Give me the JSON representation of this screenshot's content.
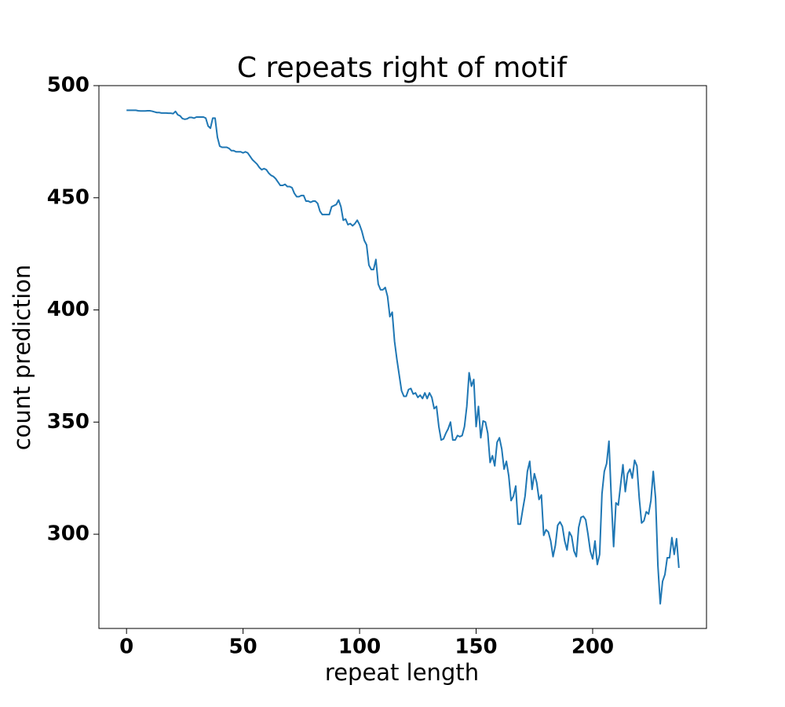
{
  "chart_data": {
    "type": "line",
    "title": "C repeats right of motif",
    "x_label": "repeat length",
    "y_label": "count prediction",
    "xlim": [
      -11.85,
      248.85
    ],
    "ylim": [
      258,
      500
    ],
    "xticks": [
      0,
      50,
      100,
      150,
      200
    ],
    "yticks": [
      300,
      350,
      400,
      450,
      500
    ],
    "grid": false,
    "series": [
      {
        "color": "#1f77b4",
        "x": [
          0,
          1,
          2,
          3,
          4,
          5,
          6,
          7,
          8,
          9,
          10,
          11,
          12,
          13,
          14,
          15,
          16,
          17,
          18,
          19,
          20,
          21,
          22,
          23,
          24,
          25,
          26,
          27,
          28,
          29,
          30,
          31,
          32,
          33,
          34,
          35,
          36,
          37,
          38,
          39,
          40,
          41,
          42,
          43,
          44,
          45,
          46,
          47,
          48,
          49,
          50,
          51,
          52,
          53,
          54,
          55,
          56,
          57,
          58,
          59,
          60,
          61,
          62,
          63,
          64,
          65,
          66,
          67,
          68,
          69,
          70,
          71,
          72,
          73,
          74,
          75,
          76,
          77,
          78,
          79,
          80,
          81,
          82,
          83,
          84,
          85,
          86,
          87,
          88,
          89,
          90,
          91,
          92,
          93,
          94,
          95,
          96,
          97,
          98,
          99,
          100,
          101,
          102,
          103,
          104,
          105,
          106,
          107,
          108,
          109,
          110,
          111,
          112,
          113,
          114,
          115,
          116,
          117,
          118,
          119,
          120,
          121,
          122,
          123,
          124,
          125,
          126,
          127,
          128,
          129,
          130,
          131,
          132,
          133,
          134,
          135,
          136,
          137,
          138,
          139,
          140,
          141,
          142,
          143,
          144,
          145,
          146,
          147,
          148,
          149,
          150,
          151,
          152,
          153,
          154,
          155,
          156,
          157,
          158,
          159,
          160,
          161,
          162,
          163,
          164,
          165,
          166,
          167,
          168,
          169,
          170,
          171,
          172,
          173,
          174,
          175,
          176,
          177,
          178,
          179,
          180,
          181,
          182,
          183,
          184,
          185,
          186,
          187,
          188,
          189,
          190,
          191,
          192,
          193,
          194,
          195,
          196,
          197,
          198,
          199,
          200,
          201,
          202,
          203,
          204,
          205,
          206,
          207,
          208,
          209,
          210,
          211,
          212,
          213,
          214,
          215,
          216,
          217,
          218,
          219,
          220,
          221,
          222,
          223,
          224,
          225,
          226,
          227,
          228,
          229,
          230,
          231,
          232,
          233,
          234,
          235,
          236,
          237
        ],
        "values": [
          489,
          489,
          489,
          489,
          489,
          488.8,
          488.7,
          488.7,
          488.7,
          488.8,
          488.8,
          488.6,
          488.3,
          488,
          488,
          487.8,
          487.8,
          487.8,
          487.7,
          487.7,
          487.5,
          488.5,
          487,
          486.5,
          485.3,
          485,
          485.2,
          485.8,
          485.8,
          485.5,
          486,
          486,
          486,
          486,
          485.5,
          482,
          481,
          485.5,
          485.5,
          477,
          473,
          472.5,
          472.5,
          472.5,
          472,
          471,
          471,
          470.5,
          470.5,
          470.5,
          470,
          470.5,
          470,
          468.5,
          467,
          466,
          465,
          463.5,
          462.5,
          463,
          462.5,
          461,
          460,
          459.5,
          458.5,
          457,
          455.5,
          455.5,
          456,
          455,
          455,
          454.5,
          452,
          450.5,
          450.5,
          451,
          451,
          448.5,
          448.5,
          448,
          448.5,
          448.5,
          447.5,
          444,
          442.5,
          442.5,
          442.5,
          442.5,
          446,
          446.5,
          447,
          449,
          446,
          440,
          440.5,
          438,
          438.5,
          437.5,
          438.5,
          440,
          438,
          435,
          431,
          429,
          420,
          418,
          418,
          422.5,
          411.5,
          409,
          409,
          410,
          406,
          397,
          399,
          386,
          378,
          371,
          364,
          361.5,
          361.5,
          364.5,
          365,
          362.5,
          363,
          361,
          362,
          360.5,
          363,
          360.5,
          363,
          361,
          356,
          357,
          348,
          342,
          342.5,
          345,
          347,
          350,
          342,
          342,
          344,
          343.5,
          344,
          348,
          357,
          372,
          366,
          369,
          348,
          357,
          343,
          350.5,
          350,
          345,
          332,
          335,
          330.5,
          341,
          343,
          338,
          329,
          332.5,
          326,
          315,
          317,
          321.5,
          304.5,
          304.5,
          311,
          317,
          328,
          332.5,
          320,
          327,
          323,
          315.5,
          317.5,
          299.5,
          302,
          301,
          297,
          290,
          295,
          304,
          305.5,
          303.5,
          297,
          293,
          301,
          299,
          292.5,
          290,
          303,
          307.5,
          308,
          306.5,
          300,
          292.5,
          289,
          297,
          286.5,
          291,
          318,
          328,
          331.5,
          341.5,
          316,
          294.5,
          314,
          313,
          322,
          331,
          319,
          327,
          329,
          325,
          333,
          330.5,
          316,
          305,
          306,
          310,
          309,
          315,
          328,
          316,
          286,
          269,
          279,
          282,
          289.5,
          289.5,
          298.5,
          291,
          298,
          285
        ]
      }
    ]
  }
}
